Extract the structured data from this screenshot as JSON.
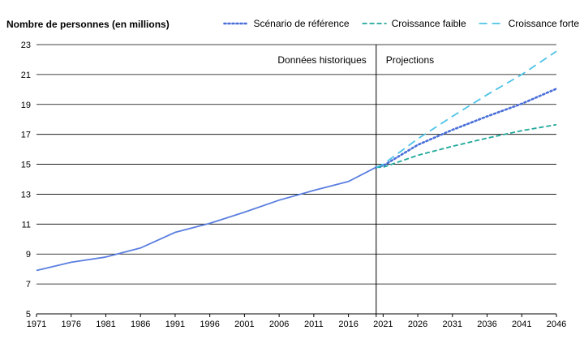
{
  "chart_data": {
    "type": "line",
    "ylabel": "Nombre de personnes (en millions)",
    "xlabel": "",
    "xlim": [
      1971,
      2046
    ],
    "ylim": [
      5,
      23
    ],
    "yticks": [
      5,
      7,
      9,
      11,
      13,
      15,
      17,
      19,
      21,
      23
    ],
    "xticks": [
      1971,
      1976,
      1981,
      1986,
      1991,
      1996,
      2001,
      2006,
      2011,
      2016,
      2021,
      2026,
      2031,
      2036,
      2041,
      2046
    ],
    "grid": "horizontal",
    "legend_position": "top-right",
    "divider_year": 2020,
    "annotations": [
      {
        "text": "Données historiques",
        "side": "left-of-divider"
      },
      {
        "text": "Projections",
        "side": "right-of-divider"
      }
    ],
    "series": [
      {
        "id": "historique",
        "color": "#5b7fe0",
        "style": "solid",
        "points": [
          [
            1971,
            7.9
          ],
          [
            1976,
            8.45
          ],
          [
            1981,
            8.8
          ],
          [
            1986,
            9.4
          ],
          [
            1991,
            10.45
          ],
          [
            1996,
            11.05
          ],
          [
            2001,
            11.8
          ],
          [
            2006,
            12.6
          ],
          [
            2011,
            13.25
          ],
          [
            2016,
            13.85
          ],
          [
            2020,
            14.8
          ]
        ]
      },
      {
        "name": "Scénario de référence",
        "color": "#4a6fd8",
        "style": "dotted",
        "points": [
          [
            2020,
            14.8
          ],
          [
            2021,
            14.9
          ],
          [
            2026,
            16.3
          ],
          [
            2031,
            17.3
          ],
          [
            2036,
            18.2
          ],
          [
            2041,
            19.05
          ],
          [
            2046,
            20.05
          ]
        ]
      },
      {
        "name": "Croissance faible",
        "color": "#1fa89a",
        "style": "dashed",
        "points": [
          [
            2020,
            14.8
          ],
          [
            2021,
            14.8
          ],
          [
            2026,
            15.6
          ],
          [
            2031,
            16.2
          ],
          [
            2036,
            16.75
          ],
          [
            2041,
            17.25
          ],
          [
            2046,
            17.65
          ]
        ]
      },
      {
        "name": "Croissance forte",
        "color": "#4dc3e8",
        "style": "longdash",
        "points": [
          [
            2020,
            14.8
          ],
          [
            2021,
            15.0
          ],
          [
            2026,
            16.7
          ],
          [
            2031,
            18.2
          ],
          [
            2036,
            19.65
          ],
          [
            2041,
            21.0
          ],
          [
            2046,
            22.55
          ]
        ]
      }
    ]
  }
}
